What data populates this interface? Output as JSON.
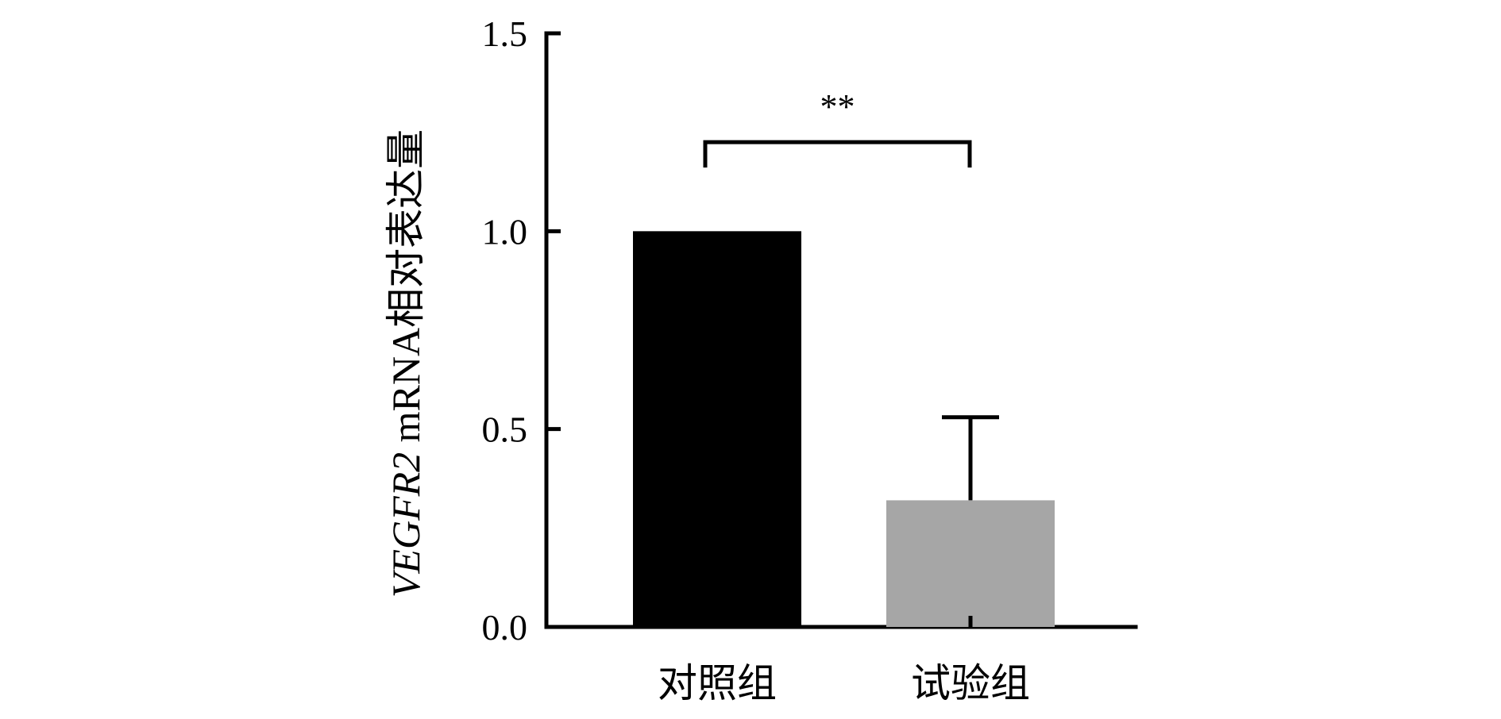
{
  "chart_data": {
    "type": "bar",
    "categories": [
      "对照组",
      "试验组"
    ],
    "values": [
      1.0,
      0.32
    ],
    "error_upper": [
      0.0,
      0.21
    ],
    "colors": [
      "#000000",
      "#a6a6a6"
    ],
    "ylabel_italic": "VEGFR2",
    "ylabel_rest": " mRNA相对表达量",
    "ylim": [
      0,
      1.5
    ],
    "yticks": [
      "0.0",
      "0.5",
      "1.0",
      "1.5"
    ],
    "yticks_values": [
      0,
      0.5,
      1.0,
      1.5
    ],
    "grid": false,
    "legend": "none",
    "significance": {
      "label": "**",
      "between": [
        0,
        1
      ],
      "level": 1.225
    }
  }
}
